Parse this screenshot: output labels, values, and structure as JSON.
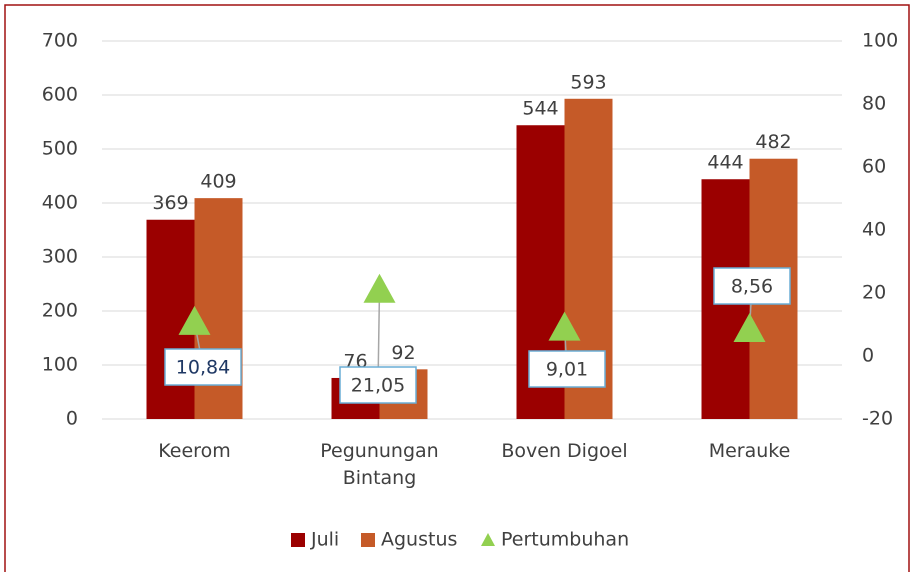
{
  "chart_data": {
    "type": "bar",
    "categories": [
      "Keerom",
      "Pegunungan Bintang",
      "Boven Digoel",
      "Merauke"
    ],
    "series": [
      {
        "name": "Juli",
        "color": "#9b0000",
        "values": [
          369,
          76,
          544,
          444
        ]
      },
      {
        "name": "Agustus",
        "color": "#c55a28",
        "values": [
          409,
          92,
          593,
          482
        ]
      },
      {
        "name": "Pertumbuhan",
        "type": "scatter",
        "axis": "y2",
        "color": "#92d050",
        "values": [
          10.84,
          21.05,
          9.01,
          8.56
        ],
        "value_labels": [
          "10,84",
          "21,05",
          "9,01",
          "8,56"
        ]
      }
    ],
    "ylim": [
      0,
      700
    ],
    "yticks": [
      0,
      100,
      200,
      300,
      400,
      500,
      600,
      700
    ],
    "y2lim": [
      -20,
      100
    ],
    "y2ticks": [
      -20,
      0,
      20,
      40,
      60,
      80,
      100
    ],
    "grid": true,
    "legend": "bottom"
  }
}
